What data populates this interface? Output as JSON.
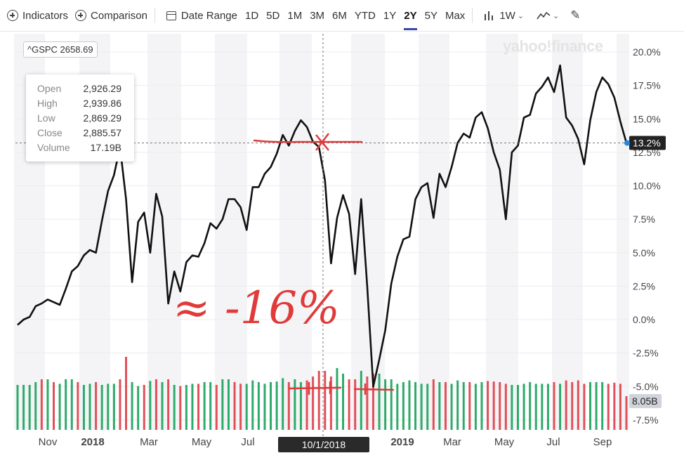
{
  "toolbar": {
    "indicators_label": "Indicators",
    "comparison_label": "Comparison",
    "date_range_label": "Date Range",
    "ranges": [
      "1D",
      "5D",
      "1M",
      "3M",
      "6M",
      "YTD",
      "1Y",
      "2Y",
      "5Y",
      "Max"
    ],
    "selected_range": "2Y",
    "interval_label": "1W",
    "accent_color": "#3949ab"
  },
  "ticker": {
    "label": "^GSPC 2658.69"
  },
  "watermark": "yahoo!finance",
  "tooltip": {
    "rows": [
      {
        "key": "Open",
        "value": "2,926.29"
      },
      {
        "key": "High",
        "value": "2,939.86"
      },
      {
        "key": "Low",
        "value": "2,869.29"
      },
      {
        "key": "Close",
        "value": "2,885.57"
      },
      {
        "key": "Volume",
        "value": "17.19B"
      }
    ]
  },
  "crosshair": {
    "date_label": "10/1/2018"
  },
  "annotation": {
    "text": "≈ -16%",
    "color": "#e03a3a"
  },
  "chart_data": {
    "type": "line",
    "y_unit": "%",
    "ylim": [
      -8.0,
      20.5
    ],
    "y_ticks": [
      "20.0%",
      "17.5%",
      "15.0%",
      "12.5%",
      "10.0%",
      "7.5%",
      "5.0%",
      "2.5%",
      "0.0%",
      "-2.5%",
      "-5.0%",
      "-7.5%"
    ],
    "x_ticks": [
      "Nov",
      "2018",
      "Mar",
      "May",
      "Jul",
      "10/1/2018",
      "2019",
      "Mar",
      "May",
      "Jul",
      "Sep"
    ],
    "current_value_label": "13.2%",
    "current_value": 13.2,
    "volume_label": "8.05B",
    "grid": true,
    "line_color": "#111111",
    "up_color": "#2eaa6b",
    "down_color": "#e0505a",
    "x": [
      0,
      1,
      2,
      3,
      4,
      5,
      6,
      7,
      8,
      9,
      10,
      11,
      12,
      13,
      14,
      15,
      16,
      17,
      18,
      19,
      20,
      21,
      22,
      23,
      24,
      25,
      26,
      27,
      28,
      29,
      30,
      31,
      32,
      33,
      34,
      35,
      36,
      37,
      38,
      39,
      40,
      41,
      42,
      43,
      44,
      45,
      46,
      47,
      48,
      49,
      50,
      51,
      52,
      53,
      54,
      55,
      56,
      57,
      58,
      59,
      60,
      61,
      62,
      63,
      64,
      65,
      66,
      67,
      68,
      69,
      70,
      71,
      72,
      73,
      74,
      75,
      76,
      77,
      78,
      79,
      80,
      81,
      82,
      83,
      84,
      85,
      86,
      87,
      88,
      89,
      90,
      91,
      92,
      93,
      94,
      95,
      96,
      97,
      98,
      99,
      100,
      101
    ],
    "values": [
      -0.4,
      0.0,
      0.2,
      1.0,
      1.2,
      1.5,
      1.3,
      1.1,
      2.3,
      3.6,
      4.0,
      4.8,
      5.2,
      5.0,
      7.4,
      9.6,
      10.8,
      12.9,
      9.0,
      2.8,
      7.3,
      8.0,
      5.0,
      9.4,
      7.7,
      1.2,
      3.6,
      2.1,
      4.3,
      4.8,
      4.7,
      5.7,
      7.2,
      6.8,
      7.5,
      9.0,
      9.0,
      8.4,
      6.7,
      9.9,
      9.9,
      10.9,
      11.4,
      12.4,
      13.8,
      13.0,
      14.1,
      14.9,
      14.4,
      13.3,
      12.9,
      10.4,
      4.2,
      7.6,
      9.3,
      7.9,
      3.4,
      9.0,
      2.5,
      -5.0,
      -3.0,
      -0.8,
      2.7,
      4.7,
      6.0,
      6.2,
      9.0,
      9.9,
      10.2,
      7.6,
      10.9,
      9.9,
      11.4,
      13.2,
      13.9,
      13.6,
      15.1,
      15.5,
      14.3,
      12.5,
      11.2,
      7.5,
      12.5,
      13.0,
      15.1,
      15.3,
      16.9,
      17.4,
      18.1,
      17.0,
      19.0,
      15.1,
      14.5,
      13.5,
      11.6,
      14.9,
      17.0,
      18.1,
      17.6,
      16.6,
      14.8,
      13.2
    ],
    "volume_bars": [
      0.8,
      0.8,
      0.8,
      0.85,
      0.9,
      0.9,
      0.85,
      0.82,
      0.9,
      0.9,
      0.85,
      0.8,
      0.82,
      0.85,
      0.8,
      0.82,
      0.82,
      0.9,
      1.3,
      0.85,
      0.78,
      0.8,
      0.87,
      0.9,
      0.85,
      0.9,
      0.8,
      0.78,
      0.8,
      0.82,
      0.82,
      0.85,
      0.85,
      0.8,
      0.9,
      0.9,
      0.85,
      0.82,
      0.82,
      0.88,
      0.85,
      0.82,
      0.85,
      0.86,
      0.92,
      0.85,
      0.9,
      0.85,
      0.88,
      0.95,
      1.05,
      1.05,
      0.95,
      1.1,
      1.0,
      0.9,
      0.9,
      1.05,
      0.95,
      1.0,
      1.0,
      0.9,
      0.9,
      0.82,
      0.85,
      0.88,
      0.85,
      0.82,
      0.82,
      0.9,
      0.85,
      0.85,
      0.82,
      0.88,
      0.85,
      0.85,
      0.82,
      0.85,
      0.87,
      0.86,
      0.85,
      0.82,
      0.8,
      0.8,
      0.82,
      0.85,
      0.82,
      0.82,
      0.82,
      0.85,
      0.82,
      0.88,
      0.85,
      0.88,
      0.82,
      0.85,
      0.85,
      0.85,
      0.82,
      0.84,
      0.82,
      0.6
    ],
    "volume_up": [
      true,
      true,
      true,
      true,
      false,
      true,
      false,
      true,
      true,
      true,
      false,
      true,
      true,
      false,
      true,
      true,
      true,
      false,
      false,
      true,
      true,
      false,
      true,
      false,
      true,
      false,
      true,
      false,
      true,
      true,
      false,
      true,
      true,
      false,
      true,
      true,
      false,
      false,
      true,
      true,
      true,
      true,
      true,
      true,
      true,
      false,
      true,
      true,
      false,
      false,
      false,
      false,
      false,
      true,
      true,
      false,
      false,
      true,
      false,
      false,
      true,
      true,
      true,
      true,
      true,
      true,
      true,
      true,
      true,
      false,
      true,
      false,
      true,
      true,
      true,
      false,
      true,
      true,
      false,
      false,
      false,
      false,
      true,
      true,
      true,
      true,
      true,
      true,
      true,
      false,
      true,
      false,
      false,
      false,
      false,
      true,
      true,
      true,
      false,
      false,
      false,
      false
    ]
  }
}
